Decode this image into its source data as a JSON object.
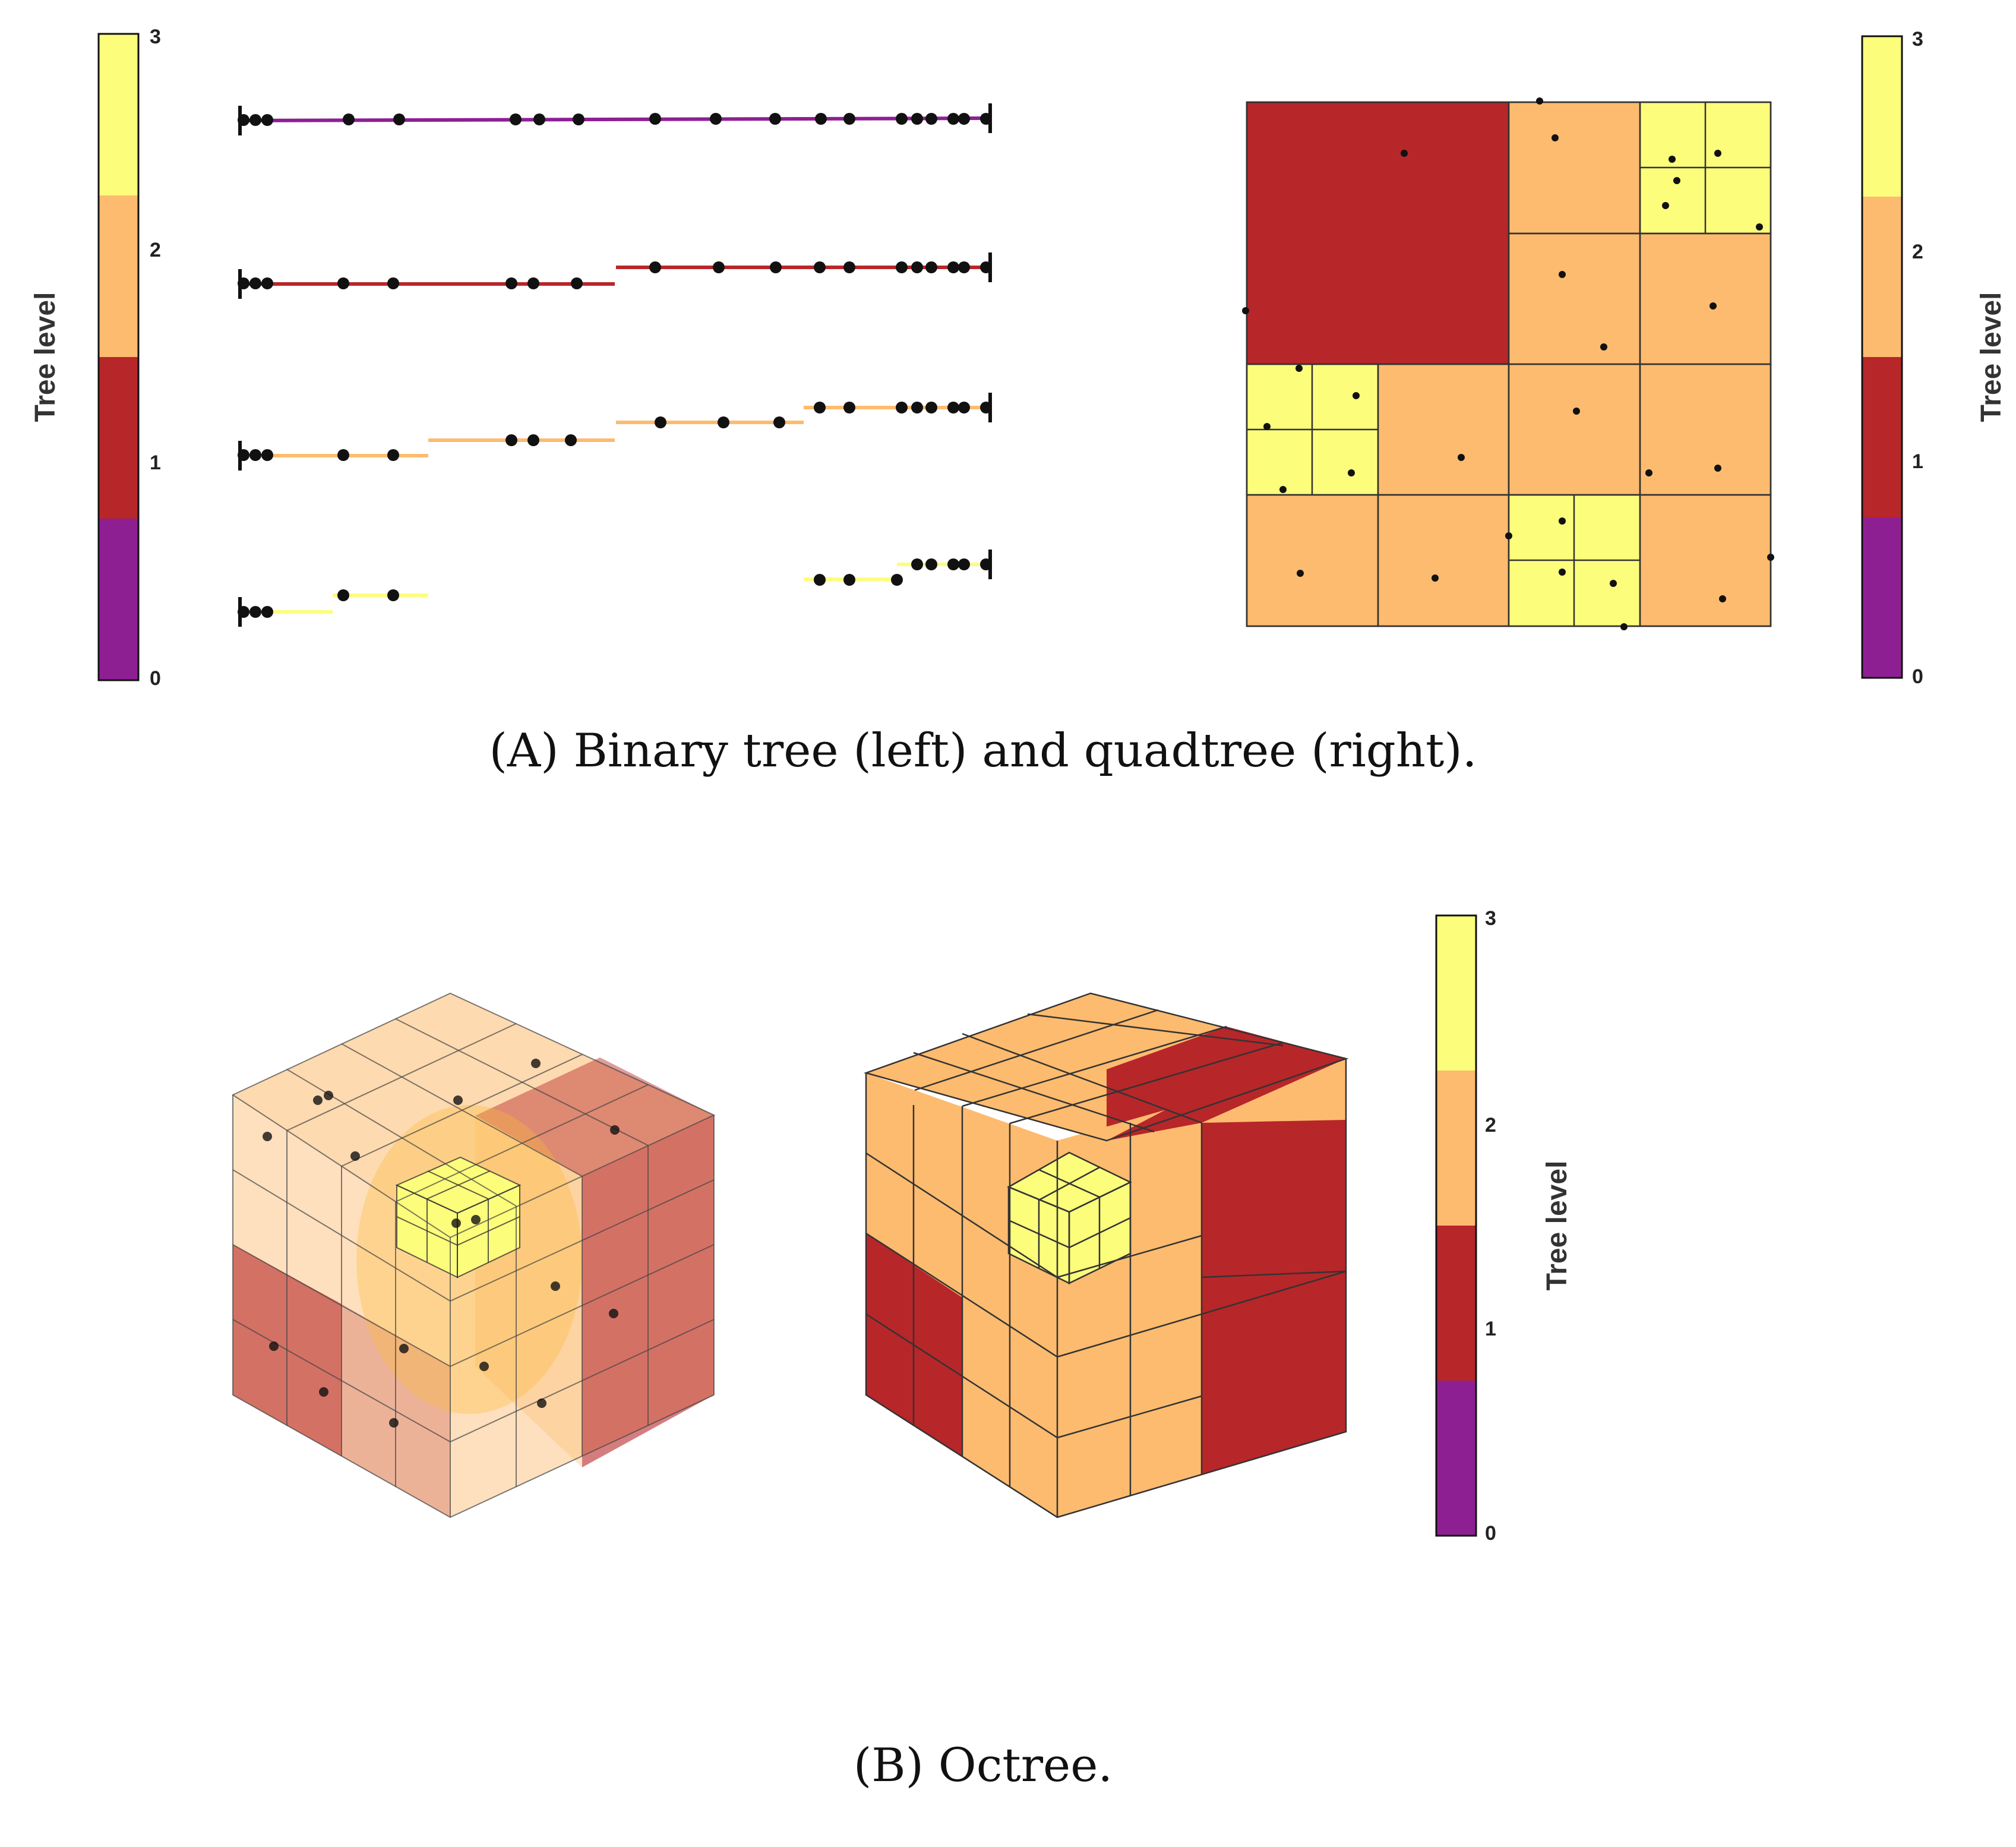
{
  "figure": {
    "colorbar": {
      "label": "Tree level",
      "ticks": [
        "0",
        "1",
        "2",
        "3"
      ],
      "level_colors": [
        "#8e1f93",
        "#b72629",
        "#fdbb6f",
        "#fdfd7c"
      ]
    },
    "caption_a": "(A) Binary tree (left) and quadtree (right).",
    "caption_b": "(B) Octree."
  }
}
